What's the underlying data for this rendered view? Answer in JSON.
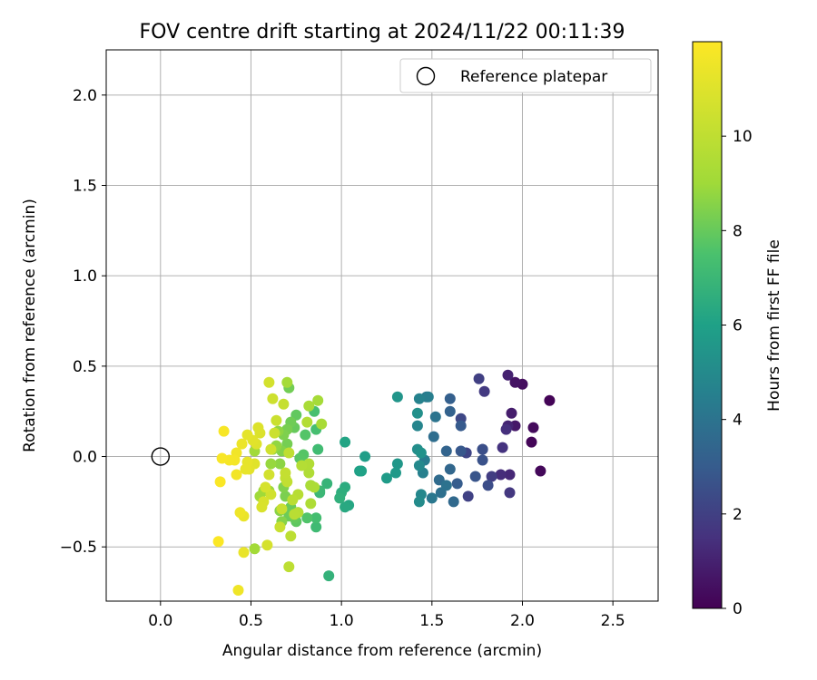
{
  "chart_data": {
    "type": "scatter",
    "title": "FOV centre drift starting at 2024/11/22 00:11:39",
    "xlabel": "Angular distance from reference (arcmin)",
    "ylabel": "Rotation from reference (arcmin)",
    "xlim": [
      -0.3,
      2.75
    ],
    "ylim": [
      -0.8,
      2.25
    ],
    "xticks": [
      0.0,
      0.5,
      1.0,
      1.5,
      2.0,
      2.5
    ],
    "yticks": [
      -0.5,
      0.0,
      0.5,
      1.0,
      1.5,
      2.0
    ],
    "grid": true,
    "legend": {
      "position": "top-right",
      "entries": [
        "Reference platepar"
      ]
    },
    "reference_point": {
      "label": "Reference platepar",
      "x": 0.0,
      "y": 0.0
    },
    "colorbar": {
      "label": "Hours from first FF file",
      "colormap": "viridis",
      "min": 0,
      "max": 12,
      "ticks": [
        0,
        2,
        4,
        6,
        8,
        10
      ]
    },
    "points": [
      [
        2.15,
        0.31,
        0.1
      ],
      [
        2.05,
        0.08,
        0.15
      ],
      [
        2.1,
        -0.08,
        0.2
      ],
      [
        2.06,
        0.16,
        0.3
      ],
      [
        2.0,
        0.4,
        0.4
      ],
      [
        1.96,
        0.41,
        0.55
      ],
      [
        1.96,
        0.17,
        0.7
      ],
      [
        1.94,
        0.24,
        0.85
      ],
      [
        1.92,
        0.45,
        1.0
      ],
      [
        1.92,
        0.17,
        1.1
      ],
      [
        1.93,
        -0.1,
        1.2
      ],
      [
        1.88,
        -0.1,
        1.35
      ],
      [
        1.91,
        0.15,
        1.45
      ],
      [
        1.89,
        0.05,
        1.55
      ],
      [
        1.93,
        -0.2,
        1.7
      ],
      [
        1.79,
        0.36,
        1.8
      ],
      [
        1.83,
        -0.11,
        1.9
      ],
      [
        1.76,
        0.43,
        2.0
      ],
      [
        1.7,
        -0.22,
        2.05
      ],
      [
        1.69,
        0.02,
        2.15
      ],
      [
        1.66,
        0.21,
        2.25
      ],
      [
        1.78,
        0.04,
        2.35
      ],
      [
        1.81,
        -0.16,
        2.45
      ],
      [
        1.78,
        0.04,
        2.55
      ],
      [
        1.78,
        -0.02,
        2.65
      ],
      [
        1.74,
        -0.11,
        2.75
      ],
      [
        1.66,
        0.03,
        2.85
      ],
      [
        1.66,
        0.17,
        2.95
      ],
      [
        1.64,
        -0.15,
        3.05
      ],
      [
        1.6,
        0.32,
        3.15
      ],
      [
        1.6,
        0.25,
        3.25
      ],
      [
        1.58,
        0.03,
        3.35
      ],
      [
        1.6,
        -0.07,
        3.45
      ],
      [
        1.62,
        -0.25,
        3.55
      ],
      [
        1.54,
        -0.13,
        3.65
      ],
      [
        1.51,
        0.11,
        3.75
      ],
      [
        1.55,
        -0.2,
        3.85
      ],
      [
        1.58,
        -0.16,
        3.95
      ],
      [
        1.52,
        0.22,
        4.05
      ],
      [
        1.5,
        -0.23,
        4.15
      ],
      [
        1.47,
        0.33,
        4.25
      ],
      [
        1.46,
        -0.02,
        4.35
      ],
      [
        1.48,
        0.33,
        4.45
      ],
      [
        1.45,
        -0.09,
        4.55
      ],
      [
        1.43,
        0.32,
        4.65
      ],
      [
        1.42,
        0.17,
        4.75
      ],
      [
        1.44,
        -0.21,
        4.85
      ],
      [
        1.43,
        -0.05,
        4.95
      ],
      [
        1.43,
        -0.25,
        5.05
      ],
      [
        1.42,
        0.04,
        5.15
      ],
      [
        1.42,
        0.24,
        5.25
      ],
      [
        1.44,
        0.02,
        5.35
      ],
      [
        1.31,
        0.33,
        5.45
      ],
      [
        1.31,
        -0.04,
        5.55
      ],
      [
        1.3,
        -0.09,
        5.65
      ],
      [
        1.25,
        -0.12,
        5.75
      ],
      [
        1.13,
        0.0,
        5.85
      ],
      [
        1.1,
        -0.08,
        5.95
      ],
      [
        1.11,
        -0.08,
        6.05
      ],
      [
        1.02,
        0.08,
        6.15
      ],
      [
        1.04,
        -0.27,
        6.25
      ],
      [
        1.02,
        -0.28,
        6.35
      ],
      [
        1.02,
        -0.17,
        6.45
      ],
      [
        1.0,
        -0.2,
        6.55
      ],
      [
        0.99,
        -0.23,
        6.65
      ],
      [
        0.93,
        -0.66,
        6.75
      ],
      [
        0.92,
        -0.15,
        6.85
      ],
      [
        0.88,
        -0.2,
        6.95
      ],
      [
        0.88,
        -0.19,
        7.05
      ],
      [
        0.86,
        -0.39,
        7.15
      ],
      [
        0.87,
        0.04,
        7.2
      ],
      [
        0.86,
        -0.34,
        7.3
      ],
      [
        0.86,
        0.15,
        7.35
      ],
      [
        0.85,
        0.25,
        7.4
      ],
      [
        0.83,
        -0.16,
        7.5
      ],
      [
        0.81,
        -0.34,
        7.6
      ],
      [
        0.8,
        0.12,
        7.65
      ],
      [
        0.79,
        0.01,
        7.7
      ],
      [
        0.77,
        -0.01,
        7.75
      ],
      [
        0.76,
        -0.31,
        7.8
      ],
      [
        0.75,
        -0.36,
        7.85
      ],
      [
        0.75,
        0.23,
        7.9
      ],
      [
        0.74,
        -0.34,
        7.95
      ],
      [
        0.74,
        0.16,
        8.0
      ],
      [
        0.72,
        -0.28,
        8.05
      ],
      [
        0.71,
        -0.33,
        8.1
      ],
      [
        0.72,
        0.19,
        8.15
      ],
      [
        0.71,
        0.38,
        8.2
      ],
      [
        0.7,
        0.07,
        8.25
      ],
      [
        0.7,
        0.15,
        8.3
      ],
      [
        0.69,
        -0.22,
        8.35
      ],
      [
        0.68,
        0.12,
        8.4
      ],
      [
        0.68,
        -0.17,
        8.45
      ],
      [
        0.67,
        0.03,
        8.5
      ],
      [
        0.67,
        -0.36,
        8.55
      ],
      [
        0.66,
        -0.3,
        8.6
      ],
      [
        0.66,
        -0.04,
        8.65
      ],
      [
        0.65,
        0.14,
        8.7
      ],
      [
        0.64,
        0.06,
        8.75
      ],
      [
        0.62,
        0.04,
        8.8
      ],
      [
        0.61,
        -0.04,
        8.85
      ],
      [
        0.6,
        -0.19,
        8.9
      ],
      [
        0.57,
        -0.19,
        8.95
      ],
      [
        0.55,
        -0.22,
        9.0
      ],
      [
        0.52,
        0.03,
        9.05
      ],
      [
        0.52,
        -0.51,
        9.1
      ],
      [
        0.7,
        0.41,
        9.15
      ],
      [
        0.87,
        0.31,
        9.2
      ],
      [
        0.89,
        0.18,
        9.25
      ],
      [
        0.82,
        0.28,
        9.3
      ],
      [
        0.83,
        -0.16,
        9.35
      ],
      [
        0.85,
        -0.17,
        9.4
      ],
      [
        0.83,
        -0.26,
        9.45
      ],
      [
        0.82,
        -0.09,
        9.5
      ],
      [
        0.82,
        -0.04,
        9.55
      ],
      [
        0.81,
        0.19,
        9.6
      ],
      [
        0.78,
        -0.05,
        9.65
      ],
      [
        0.76,
        -0.31,
        9.7
      ],
      [
        0.76,
        -0.21,
        9.75
      ],
      [
        0.74,
        -0.32,
        9.8
      ],
      [
        0.73,
        -0.24,
        9.85
      ],
      [
        0.72,
        -0.44,
        9.9
      ],
      [
        0.71,
        -0.61,
        9.95
      ],
      [
        0.71,
        0.02,
        10.0
      ],
      [
        0.7,
        -0.14,
        10.05
      ],
      [
        0.69,
        -0.12,
        10.1
      ],
      [
        0.69,
        -0.09,
        10.15
      ],
      [
        0.68,
        0.29,
        10.2
      ],
      [
        0.67,
        -0.29,
        10.25
      ],
      [
        0.66,
        -0.39,
        10.3
      ],
      [
        0.64,
        0.2,
        10.35
      ],
      [
        0.63,
        0.13,
        10.4
      ],
      [
        0.62,
        0.32,
        10.45
      ],
      [
        0.61,
        0.04,
        10.5
      ],
      [
        0.61,
        -0.21,
        10.55
      ],
      [
        0.6,
        -0.1,
        10.6
      ],
      [
        0.6,
        0.41,
        10.65
      ],
      [
        0.59,
        -0.49,
        10.7
      ],
      [
        0.58,
        -0.17,
        10.75
      ],
      [
        0.57,
        -0.25,
        10.8
      ],
      [
        0.56,
        -0.28,
        10.85
      ],
      [
        0.55,
        0.13,
        10.9
      ],
      [
        0.54,
        0.16,
        10.95
      ],
      [
        0.53,
        0.07,
        11.0
      ],
      [
        0.52,
        -0.04,
        11.05
      ],
      [
        0.51,
        0.09,
        11.1
      ],
      [
        0.49,
        -0.07,
        11.15
      ],
      [
        0.48,
        0.12,
        11.2
      ],
      [
        0.48,
        -0.03,
        11.25
      ],
      [
        0.47,
        -0.07,
        11.3
      ],
      [
        0.46,
        -0.53,
        11.35
      ],
      [
        0.46,
        -0.33,
        11.4
      ],
      [
        0.45,
        0.07,
        11.45
      ],
      [
        0.44,
        -0.31,
        11.5
      ],
      [
        0.43,
        -0.74,
        11.55
      ],
      [
        0.42,
        0.02,
        11.6
      ],
      [
        0.42,
        -0.1,
        11.65
      ],
      [
        0.41,
        -0.02,
        11.7
      ],
      [
        0.38,
        -0.02,
        11.75
      ],
      [
        0.35,
        0.14,
        11.8
      ],
      [
        0.34,
        -0.01,
        11.85
      ],
      [
        0.33,
        -0.14,
        11.9
      ],
      [
        0.32,
        -0.47,
        11.95
      ]
    ]
  }
}
